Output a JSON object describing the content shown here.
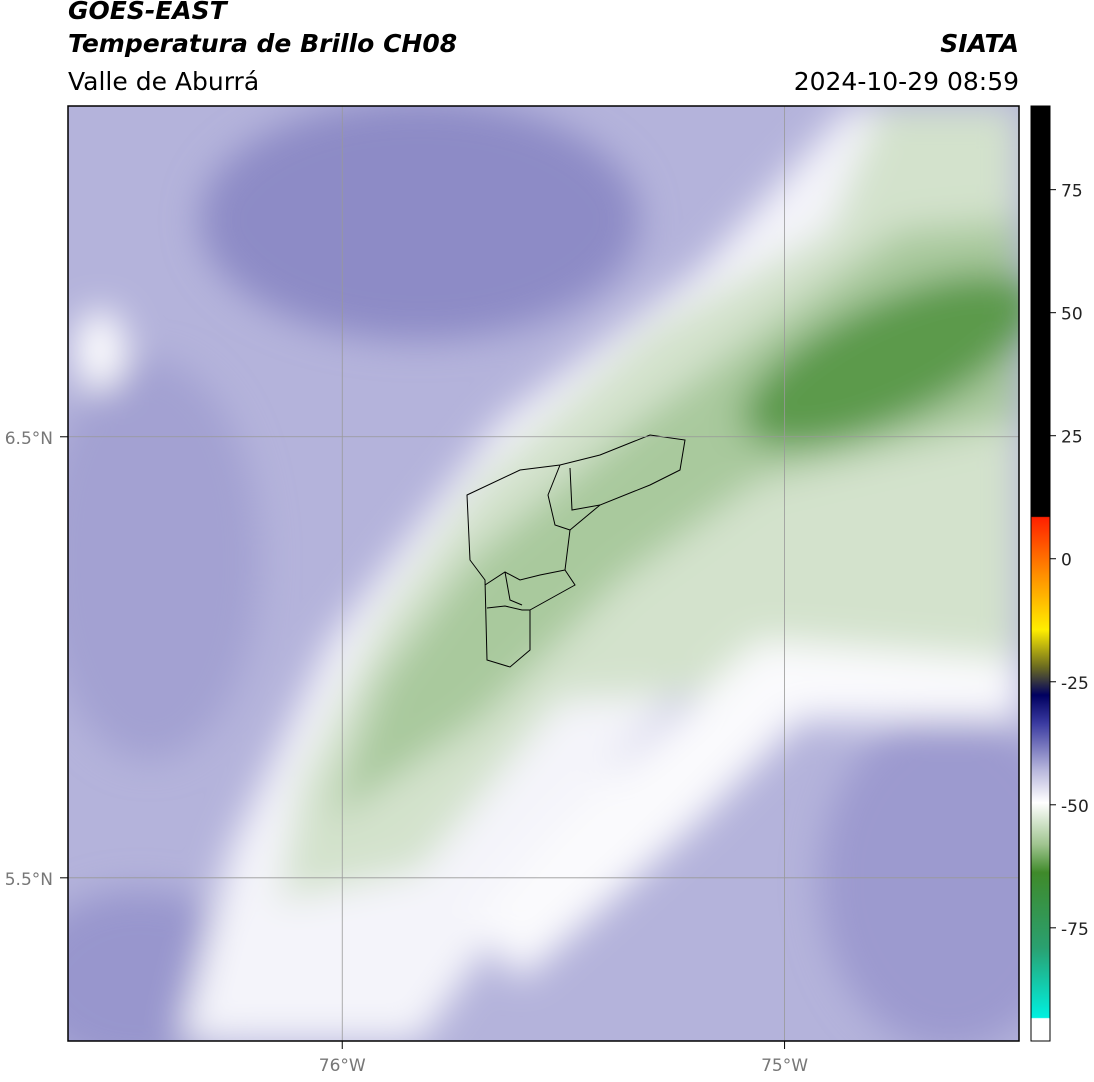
{
  "header": {
    "title": "GOES-EAST",
    "subtitle": "Temperatura de Brillo CH08",
    "region": "Valle de Aburrá",
    "agency": "SIATA",
    "datetime": "2024-10-29 08:59"
  },
  "map": {
    "latlim": [
      5.13,
      7.25
    ],
    "lonlim": [
      -76.62,
      -74.47
    ],
    "lat_ticks": [
      {
        "value": 6.5,
        "label": "6.5°N"
      },
      {
        "value": 5.5,
        "label": "5.5°N"
      }
    ],
    "lon_ticks": [
      {
        "value": -76,
        "label": "76°W"
      },
      {
        "value": -75,
        "label": "75°W"
      }
    ]
  },
  "colorbar": {
    "lim": [
      -98,
      92
    ],
    "ticks": [
      75,
      50,
      25,
      0,
      -25,
      -50,
      -75
    ]
  }
}
